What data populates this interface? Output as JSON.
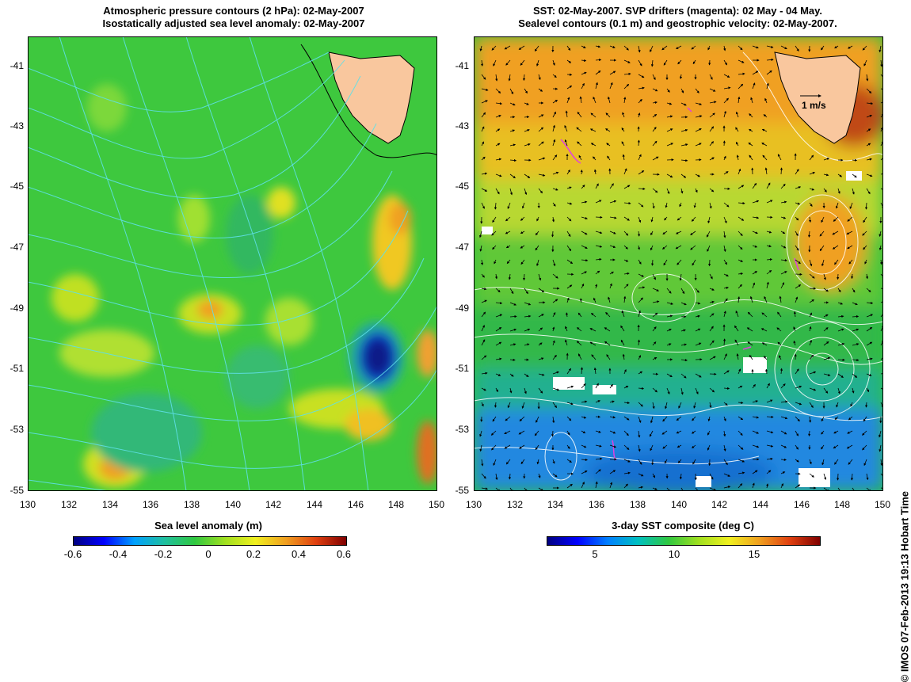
{
  "left_panel": {
    "title_line1": "Atmospheric pressure contours (2 hPa): 02-May-2007",
    "title_line2": "Isostatically adjusted sea level anomaly: 02-May-2007",
    "y_ticks": [
      "-41",
      "-43",
      "-45",
      "-47",
      "-49",
      "-51",
      "-53",
      "-55"
    ],
    "x_ticks": [
      "130",
      "132",
      "134",
      "136",
      "138",
      "140",
      "142",
      "144",
      "146",
      "148",
      "150"
    ],
    "colorbar_title": "Sea level anomaly (m)",
    "colorbar_ticks": [
      "-0.6",
      "-0.4",
      "-0.2",
      "0",
      "0.2",
      "0.4",
      "0.6"
    ]
  },
  "right_panel": {
    "title_line1": "SST: 02-May-2007. SVP drifters (magenta): 02 May - 04 May.",
    "title_line2": "Sealevel contours (0.1 m) and geostrophic velocity: 02-May-2007.",
    "y_ticks": [
      "-41",
      "-43",
      "-45",
      "-47",
      "-49",
      "-51",
      "-53",
      "-55"
    ],
    "x_ticks": [
      "130",
      "132",
      "134",
      "136",
      "138",
      "140",
      "142",
      "144",
      "146",
      "148",
      "150"
    ],
    "velocity_scale_label": "1 m/s",
    "colorbar_title": "3-day SST composite (deg C)",
    "colorbar_ticks": [
      "5",
      "10",
      "15"
    ]
  },
  "credit": "© IMOS 07-Feb-2013 19:13 Hobart Time",
  "colors": {
    "land": "#f9c79e",
    "cyan_contour": "#5fe0e8",
    "drifter": "#e040e0"
  }
}
